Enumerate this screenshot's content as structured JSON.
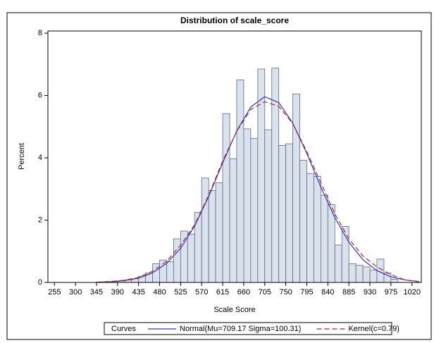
{
  "chart_data": {
    "type": "histogram",
    "title": "Distribution of scale_score",
    "xlabel": "Scale Score",
    "ylabel": "Percent",
    "bins": [
      375,
      390,
      405,
      420,
      435,
      450,
      465,
      480,
      495,
      510,
      525,
      540,
      555,
      570,
      585,
      600,
      615,
      630,
      645,
      660,
      675,
      690,
      705,
      720,
      735,
      750,
      765,
      780,
      795,
      810,
      825,
      840,
      855,
      870,
      885,
      900,
      915,
      930,
      945,
      960,
      975,
      990
    ],
    "values": [
      0.03,
      0.05,
      0.08,
      0.12,
      0.2,
      0.3,
      0.6,
      0.72,
      0.67,
      1.4,
      1.65,
      1.55,
      2.25,
      3.35,
      2.95,
      3.2,
      5.42,
      3.97,
      6.5,
      4.93,
      4.62,
      6.85,
      4.9,
      6.88,
      4.4,
      4.45,
      6.05,
      3.92,
      3.5,
      3.4,
      2.8,
      2.5,
      1.2,
      1.8,
      0.6,
      0.55,
      0.5,
      0.4,
      0.75,
      0.3,
      0.1
    ],
    "color": "#dae2ed",
    "edgecolor": "#5d6b80",
    "xlim": [
      241,
      1040
    ],
    "ylim": [
      0,
      8.07
    ],
    "xticks": [
      255,
      300,
      345,
      390,
      435,
      480,
      525,
      570,
      615,
      660,
      705,
      750,
      795,
      840,
      885,
      930,
      975,
      1020
    ],
    "yticks": [
      0,
      2,
      4,
      6,
      8
    ],
    "legend_title": "Curves",
    "curves": [
      {
        "name": "Normal(Mu=709.17 Sigma=100.31)",
        "color": "#3333cc",
        "linestyle": "solid",
        "x": [
          345,
          375,
          405,
          435,
          465,
          495,
          525,
          555,
          585,
          615,
          645,
          675,
          705,
          735,
          765,
          795,
          825,
          855,
          885,
          915,
          945,
          975,
          1005,
          1035
        ],
        "values": [
          0.008,
          0.02,
          0.06,
          0.14,
          0.31,
          0.61,
          1.1,
          1.81,
          2.76,
          3.84,
          4.86,
          5.63,
          5.96,
          5.77,
          5.11,
          4.14,
          3.06,
          2.08,
          1.29,
          0.73,
          0.38,
          0.18,
          0.08,
          0.03
        ]
      },
      {
        "name": "Kernel(c=0.79)",
        "color": "#a52a2a",
        "linestyle": "dashed",
        "x": [
          345,
          375,
          405,
          435,
          465,
          495,
          525,
          555,
          585,
          615,
          645,
          675,
          705,
          735,
          765,
          795,
          825,
          855,
          885,
          915,
          945,
          975,
          1005,
          1035
        ],
        "values": [
          0.01,
          0.03,
          0.07,
          0.16,
          0.36,
          0.68,
          1.2,
          1.85,
          2.8,
          3.9,
          4.85,
          5.55,
          5.8,
          5.65,
          5.1,
          4.2,
          3.2,
          2.2,
          1.4,
          0.85,
          0.5,
          0.25,
          0.08,
          0.02
        ]
      }
    ]
  }
}
